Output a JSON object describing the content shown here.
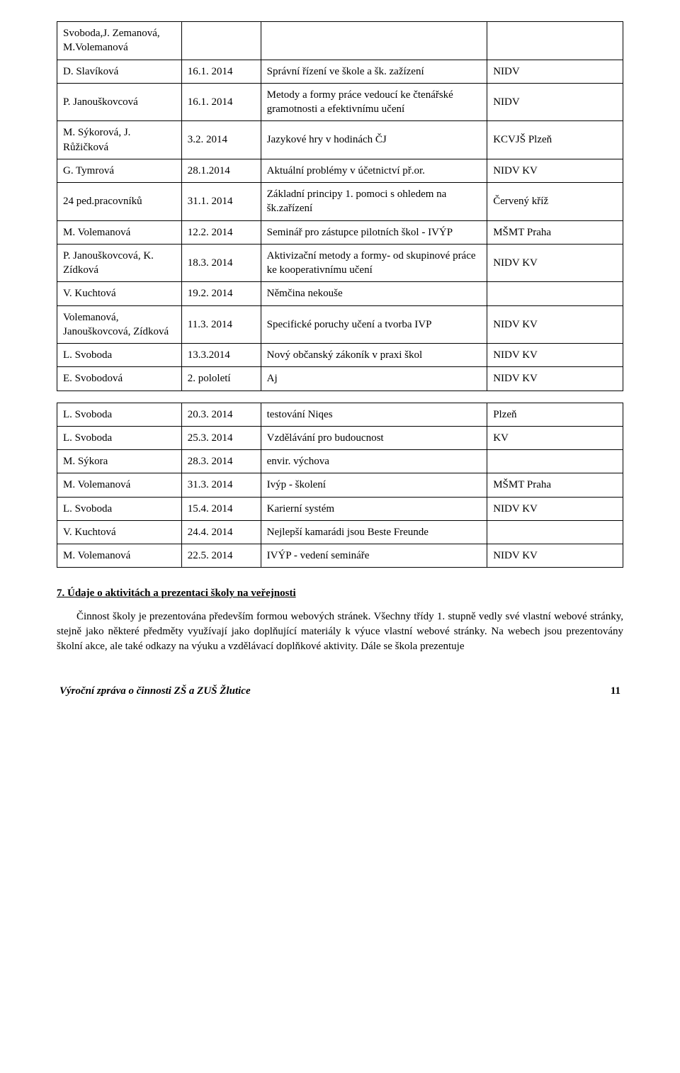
{
  "table1": {
    "columns": 4,
    "rows": [
      [
        "Svoboda,J. Zemanová, M.Volemanová",
        "",
        "",
        ""
      ],
      [
        "D. Slavíková",
        "16.1. 2014",
        "Správní řízení ve škole a šk. zažízení",
        "NIDV"
      ],
      [
        "P. Janouškovcová",
        "16.1. 2014",
        "Metody a formy práce vedoucí ke čtenářské gramotnosti a efektivnímu učení",
        "NIDV"
      ],
      [
        "M. Sýkorová, J. Růžičková",
        "3.2. 2014",
        "Jazykové hry v hodinách ČJ",
        "KCVJŠ Plzeň"
      ],
      [
        "G. Tymrová",
        "28.1.2014",
        "Aktuální problémy v účetnictví př.or.",
        "NIDV KV"
      ],
      [
        "24 ped.pracovníků",
        "31.1. 2014",
        "Základní principy 1. pomoci s ohledem na šk.zařízení",
        "Červený kříž"
      ],
      [
        "M. Volemanová",
        "12.2. 2014",
        "Seminář pro zástupce pilotních škol - IVÝP",
        "MŠMT Praha"
      ],
      [
        "P. Janouškovcová, K. Zídková",
        "18.3. 2014",
        "Aktivizační metody a formy- od skupinové práce ke kooperativnímu učení",
        "NIDV KV"
      ],
      [
        "V. Kuchtová",
        "19.2. 2014",
        "Němčina nekouše",
        ""
      ],
      [
        "Volemanová, Janouškovcová, Zídková",
        "11.3. 2014",
        "Specifické poruchy učení a tvorba IVP",
        "NIDV KV"
      ],
      [
        "L. Svoboda",
        "13.3.2014",
        "Nový občanský zákoník v praxi škol",
        "NIDV KV"
      ],
      [
        "E. Svobodová",
        "2. pololetí",
        "Aj",
        "NIDV KV"
      ]
    ]
  },
  "table2": {
    "columns": 4,
    "rows": [
      [
        "L. Svoboda",
        "20.3. 2014",
        "testování Niqes",
        "Plzeň"
      ],
      [
        "L. Svoboda",
        "25.3. 2014",
        "Vzdělávání pro budoucnost",
        "KV"
      ],
      [
        "M. Sýkora",
        "28.3. 2014",
        "envir. výchova",
        ""
      ],
      [
        "M. Volemanová",
        "31.3. 2014",
        "Ivýp - školení",
        "MŠMT Praha"
      ],
      [
        "L. Svoboda",
        "15.4. 2014",
        "Karierní systém",
        "NIDV KV"
      ],
      [
        "V. Kuchtová",
        "24.4. 2014",
        "Nejlepší kamarádi jsou Beste Freunde",
        ""
      ],
      [
        "M. Volemanová",
        "22.5. 2014",
        "IVÝP - vedení semináře",
        "NIDV KV"
      ]
    ]
  },
  "section": {
    "title": "7. Údaje o aktivitách a prezentaci školy na veřejnosti",
    "paragraph_start": "Činnost školy je prezentována především formou webových stránek. Všechny třídy 1.",
    "paragraph_rest": "stupně vedly své vlastní webové stránky, stejně jako některé předměty využívají jako doplňující materiály k výuce vlastní webové stránky. Na webech jsou prezentovány školní akce, ale také odkazy na výuku a vzdělávací doplňkové aktivity. Dále se škola prezentuje"
  },
  "footer": {
    "text": "Výroční zpráva o činnosti ZŠ a ZUŠ Žlutice",
    "page": "11"
  },
  "style": {
    "border_color": "#000000",
    "background_color": "#ffffff",
    "text_color": "#000000",
    "font_family": "Times New Roman",
    "body_font_size": 15,
    "col_widths_pct": [
      22,
      14,
      40,
      24
    ]
  }
}
